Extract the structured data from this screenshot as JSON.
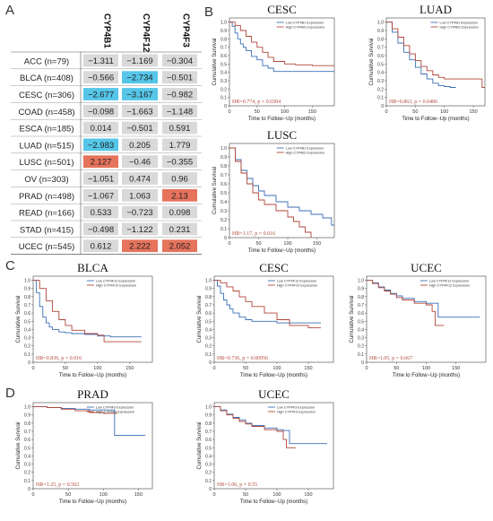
{
  "panel_letters": [
    "A",
    "B",
    "C",
    "D"
  ],
  "colors": {
    "blue_cell": "#55c6e8",
    "red_cell": "#e6735c",
    "gray_cell": "#d9d9d9",
    "low_line": "#3b6fb6",
    "high_line": "#b0473a",
    "hr_text": "#b0473a"
  },
  "chart_data": [
    {
      "type": "table",
      "panel": "A",
      "columns": [
        "CYP4B1",
        "CYP4F12",
        "CYP4F3"
      ],
      "rows": [
        {
          "label": "ACC (n=79)",
          "values": [
            "−1.311",
            "−1.169",
            "−0.304"
          ],
          "colors": [
            "gray",
            "gray",
            "gray"
          ]
        },
        {
          "label": "BLCA (n=408)",
          "values": [
            "−0.566",
            "−2.734",
            "−0.501"
          ],
          "colors": [
            "gray",
            "blue",
            "gray"
          ]
        },
        {
          "label": "CESC (n=306)",
          "values": [
            "−2.677",
            "−3.167",
            "−0.982"
          ],
          "colors": [
            "blue",
            "blue",
            "gray"
          ]
        },
        {
          "label": "COAD (n=458)",
          "values": [
            "−0.098",
            "−1.663",
            "−1.148"
          ],
          "colors": [
            "gray",
            "gray",
            "gray"
          ]
        },
        {
          "label": "ESCA (n=185)",
          "values": [
            "0.014",
            "−0.501",
            "0.591"
          ],
          "colors": [
            "gray",
            "gray",
            "gray"
          ]
        },
        {
          "label": "LUAD (n=515)",
          "values": [
            "−2.983",
            "0.205",
            "1.779"
          ],
          "colors": [
            "blue",
            "gray",
            "gray"
          ]
        },
        {
          "label": "LUSC (n=501)",
          "values": [
            "2.127",
            "−0.46",
            "−0.355"
          ],
          "colors": [
            "red",
            "gray",
            "gray"
          ]
        },
        {
          "label": "OV (n=303)",
          "values": [
            "−1.051",
            "0.474",
            "0.96"
          ],
          "colors": [
            "gray",
            "gray",
            "gray"
          ]
        },
        {
          "label": "PRAD (n=498)",
          "values": [
            "−1.067",
            "1.063",
            "2.13"
          ],
          "colors": [
            "gray",
            "gray",
            "red"
          ]
        },
        {
          "label": "READ (n=166)",
          "values": [
            "0.533",
            "−0.723",
            "0.098"
          ],
          "colors": [
            "gray",
            "gray",
            "gray"
          ]
        },
        {
          "label": "STAD (n=415)",
          "values": [
            "−0.498",
            "−1.122",
            "0.231"
          ],
          "colors": [
            "gray",
            "gray",
            "gray"
          ]
        },
        {
          "label": "UCEC (n=545)",
          "values": [
            "0.612",
            "2.222",
            "2.052"
          ],
          "colors": [
            "gray",
            "red",
            "red"
          ]
        }
      ]
    },
    {
      "type": "line",
      "panel": "B",
      "title": "CESC",
      "xlabel": "Time to Follow−Up (months)",
      "ylabel": "Cumulative Survival",
      "xlim": [
        0,
        190
      ],
      "ylim": [
        0,
        1.05
      ],
      "xticks": [
        0,
        50,
        100,
        150
      ],
      "yticks": [
        0,
        0.1,
        0.2,
        0.3,
        0.4,
        0.5,
        0.6,
        0.7,
        0.8,
        0.9,
        1.0
      ],
      "ytick_labels": [
        "0",
        "0.1",
        "0.2",
        "0.3",
        "0.4",
        "0.5",
        "0.6",
        "0.7",
        "0.8",
        "0.9",
        "1.0"
      ],
      "legend": [
        "Low CYP4B1 Expression",
        "High CYP4B1 Expression"
      ],
      "hr_text": "HR=0.774, p = 0.0304",
      "series": [
        {
          "name": "Low CYP4B1 Expression",
          "color": "#3b6fb6",
          "x": [
            0,
            5,
            10,
            15,
            20,
            25,
            30,
            40,
            50,
            60,
            70,
            80,
            100,
            190
          ],
          "y": [
            1.0,
            0.95,
            0.87,
            0.8,
            0.74,
            0.7,
            0.66,
            0.59,
            0.55,
            0.48,
            0.45,
            0.41,
            0.41,
            0.41
          ]
        },
        {
          "name": "High CYP4B1 Expression",
          "color": "#b0473a",
          "x": [
            0,
            10,
            20,
            30,
            40,
            50,
            60,
            70,
            80,
            100,
            120,
            150,
            190
          ],
          "y": [
            1.0,
            0.96,
            0.9,
            0.83,
            0.76,
            0.7,
            0.64,
            0.58,
            0.53,
            0.5,
            0.49,
            0.48,
            0.48
          ]
        }
      ]
    },
    {
      "type": "line",
      "panel": "B",
      "title": "LUAD",
      "xlabel": "Time to Follow−Up (months)",
      "ylabel": "Cumulative Survival",
      "xlim": [
        0,
        170
      ],
      "ylim": [
        0,
        1.05
      ],
      "xticks": [
        0,
        50,
        100,
        150
      ],
      "yticks": [
        0,
        0.1,
        0.2,
        0.3,
        0.4,
        0.5,
        0.6,
        0.7,
        0.8,
        0.9,
        1.0
      ],
      "ytick_labels": [
        "0",
        "0.1",
        "0.2",
        "0.3",
        "0.4",
        "0.5",
        "0.6",
        "0.7",
        "0.8",
        "0.9",
        "1.0"
      ],
      "legend": [
        "Low CYP4B1 Expression",
        "High CYP4B1 Expression"
      ],
      "hr_text": "HR=0.863, p = 0.0406",
      "series": [
        {
          "name": "Low CYP4B1 Expression",
          "color": "#3b6fb6",
          "x": [
            0,
            10,
            20,
            30,
            40,
            50,
            60,
            70,
            80,
            90,
            100,
            110,
            120
          ],
          "y": [
            1.0,
            0.88,
            0.75,
            0.64,
            0.55,
            0.46,
            0.38,
            0.32,
            0.27,
            0.24,
            0.23,
            0.22,
            0.22
          ]
        },
        {
          "name": "High CYP4B1 Expression",
          "color": "#b0473a",
          "x": [
            0,
            10,
            20,
            30,
            40,
            50,
            60,
            70,
            80,
            90,
            100,
            120,
            150,
            165,
            170
          ],
          "y": [
            1.0,
            0.92,
            0.82,
            0.72,
            0.62,
            0.54,
            0.47,
            0.42,
            0.37,
            0.34,
            0.32,
            0.32,
            0.32,
            0.22,
            0.22
          ]
        }
      ]
    },
    {
      "type": "line",
      "panel": "B",
      "title": "LUSC",
      "xlabel": "Time to Follow−Up (months)",
      "ylabel": "Cumulative Survival",
      "xlim": [
        0,
        180
      ],
      "ylim": [
        0,
        1.05
      ],
      "xticks": [
        0,
        50,
        100,
        150
      ],
      "yticks": [
        0,
        0.1,
        0.2,
        0.3,
        0.4,
        0.5,
        0.6,
        0.7,
        0.8,
        0.9,
        1.0
      ],
      "ytick_labels": [
        "0",
        "0.1",
        "0.2",
        "0.3",
        "0.4",
        "0.5",
        "0.6",
        "0.7",
        "0.8",
        "0.9",
        "1.0"
      ],
      "legend": [
        "Low CYP4B1 Expression",
        "High CYP4B1 Expression"
      ],
      "hr_text": "HR=1.17, p = 0.016",
      "series": [
        {
          "name": "Low CYP4B1 Expression",
          "color": "#3b6fb6",
          "x": [
            0,
            10,
            20,
            30,
            40,
            50,
            60,
            80,
            100,
            120,
            140,
            160,
            175,
            180
          ],
          "y": [
            1.0,
            0.87,
            0.75,
            0.66,
            0.58,
            0.52,
            0.47,
            0.4,
            0.34,
            0.3,
            0.26,
            0.22,
            0.14,
            0.14
          ]
        },
        {
          "name": "High CYP4B1 Expression",
          "color": "#b0473a",
          "x": [
            0,
            10,
            20,
            30,
            40,
            50,
            60,
            80,
            100,
            110,
            120,
            130,
            140
          ],
          "y": [
            1.0,
            0.85,
            0.72,
            0.6,
            0.5,
            0.42,
            0.37,
            0.3,
            0.23,
            0.18,
            0.12,
            0.06,
            0.0
          ]
        }
      ]
    },
    {
      "type": "line",
      "panel": "C",
      "title": "BLCA",
      "xlabel": "Time to Follow−Up (months)",
      "ylabel": "Cumulative Survival",
      "xlim": [
        0,
        185
      ],
      "ylim": [
        0,
        1.05
      ],
      "xticks": [
        0,
        50,
        100,
        150
      ],
      "yticks": [
        0,
        0.1,
        0.2,
        0.3,
        0.4,
        0.5,
        0.6,
        0.7,
        0.8,
        0.9,
        1.0
      ],
      "ytick_labels": [
        "0",
        "0.1",
        "0.2",
        "0.3",
        "0.4",
        "0.5",
        "0.6",
        "0.7",
        "0.8",
        "0.9",
        "1.0"
      ],
      "legend": [
        "Low CYP4F12 Expression",
        "High CYP4F12 Expression"
      ],
      "hr_text": "HR=0.836, p = 0.016",
      "series": [
        {
          "name": "Low CYP4F12 Expression",
          "color": "#3b6fb6",
          "x": [
            0,
            5,
            10,
            15,
            20,
            25,
            30,
            40,
            50,
            60,
            80,
            100,
            120,
            168
          ],
          "y": [
            1.0,
            0.85,
            0.68,
            0.55,
            0.48,
            0.43,
            0.4,
            0.37,
            0.36,
            0.35,
            0.34,
            0.32,
            0.31,
            0.31
          ]
        },
        {
          "name": "High CYP4F12 Expression",
          "color": "#b0473a",
          "x": [
            0,
            10,
            20,
            30,
            40,
            50,
            60,
            80,
            100,
            110,
            120,
            168
          ],
          "y": [
            1.0,
            0.9,
            0.75,
            0.62,
            0.52,
            0.45,
            0.39,
            0.35,
            0.33,
            0.25,
            0.25,
            0.25
          ]
        }
      ]
    },
    {
      "type": "line",
      "panel": "C",
      "title": "CESC",
      "xlabel": "Time to Follow−Up (months)",
      "ylabel": "Cumulative Survival",
      "xlim": [
        0,
        190
      ],
      "ylim": [
        0,
        1.05
      ],
      "xticks": [
        0,
        50,
        100,
        150
      ],
      "yticks": [
        0,
        0.1,
        0.2,
        0.3,
        0.4,
        0.5,
        0.6,
        0.7,
        0.8,
        0.9,
        1.0
      ],
      "ytick_labels": [
        "0",
        "0.1",
        "0.2",
        "0.3",
        "0.4",
        "0.5",
        "0.6",
        "0.7",
        "0.8",
        "0.9",
        "1.0"
      ],
      "legend": [
        "Low CYP4F12 Expression",
        "High CYP4F12 Expression"
      ],
      "hr_text": "HR=0.736, p = 0.00956",
      "series": [
        {
          "name": "Low CYP4F12 Expression",
          "color": "#3b6fb6",
          "x": [
            0,
            5,
            10,
            15,
            20,
            25,
            30,
            40,
            50,
            60,
            80,
            100,
            120,
            150,
            170
          ],
          "y": [
            1.0,
            0.93,
            0.84,
            0.76,
            0.7,
            0.65,
            0.6,
            0.55,
            0.52,
            0.5,
            0.5,
            0.48,
            0.48,
            0.48,
            0.48
          ]
        },
        {
          "name": "High CYP4F12 Expression",
          "color": "#b0473a",
          "x": [
            0,
            10,
            20,
            30,
            40,
            50,
            60,
            80,
            100,
            120,
            150,
            170
          ],
          "y": [
            1.0,
            0.97,
            0.92,
            0.87,
            0.8,
            0.74,
            0.68,
            0.6,
            0.52,
            0.45,
            0.42,
            0.42
          ]
        }
      ]
    },
    {
      "type": "line",
      "panel": "C",
      "title": "UCEC",
      "xlabel": "Time to Follow−Up (months)",
      "ylabel": "Cumulative Survival",
      "xlim": [
        0,
        200
      ],
      "ylim": [
        0,
        1.05
      ],
      "xticks": [
        0,
        50,
        100,
        150
      ],
      "yticks": [
        0,
        0.1,
        0.2,
        0.3,
        0.4,
        0.5,
        0.6,
        0.7,
        0.8,
        0.9,
        1.0
      ],
      "ytick_labels": [
        "0",
        "0.1",
        "0.2",
        "0.3",
        "0.4",
        "0.5",
        "0.6",
        "0.7",
        "0.8",
        "0.9",
        "1.0"
      ],
      "legend": [
        "Low CYP4F12 Expression",
        "High CYP4F12 Expression"
      ],
      "hr_text": "HR=1.05, p = 0.667",
      "series": [
        {
          "name": "Low CYP4F12 Expression",
          "color": "#3b6fb6",
          "x": [
            0,
            10,
            20,
            30,
            40,
            50,
            60,
            80,
            100,
            115,
            120,
            150,
            190
          ],
          "y": [
            1.0,
            0.97,
            0.92,
            0.88,
            0.84,
            0.81,
            0.78,
            0.74,
            0.72,
            0.72,
            0.55,
            0.55,
            0.55
          ]
        },
        {
          "name": "High CYP4F12 Expression",
          "color": "#b0473a",
          "x": [
            0,
            10,
            20,
            30,
            40,
            50,
            60,
            80,
            100,
            110,
            115,
            130
          ],
          "y": [
            1.0,
            0.96,
            0.91,
            0.87,
            0.83,
            0.79,
            0.76,
            0.72,
            0.7,
            0.62,
            0.45,
            0.45
          ]
        }
      ]
    },
    {
      "type": "line",
      "panel": "D",
      "title": "PRAD",
      "xlabel": "Time to Follow−Up (months)",
      "ylabel": "Cumulative Survival",
      "xlim": [
        0,
        170
      ],
      "ylim": [
        0,
        1.05
      ],
      "xticks": [
        0,
        50,
        100,
        150
      ],
      "yticks": [
        0,
        0.1,
        0.2,
        0.3,
        0.4,
        0.5,
        0.6,
        0.7,
        0.8,
        0.9,
        1.0
      ],
      "ytick_labels": [
        "0",
        "0.1",
        "0.2",
        "0.3",
        "0.4",
        "0.5",
        "0.6",
        "0.7",
        "0.8",
        "0.9",
        "1.0"
      ],
      "legend": [
        "Low CYP4F3 Expression",
        "High CYP4F3 Expression"
      ],
      "hr_text": "HR=1.25, p = 0.502",
      "series": [
        {
          "name": "Low CYP4F3 Expression",
          "color": "#3b6fb6",
          "x": [
            0,
            20,
            40,
            60,
            80,
            100,
            115,
            116,
            160
          ],
          "y": [
            1.0,
            0.99,
            0.98,
            0.97,
            0.96,
            0.96,
            0.96,
            0.65,
            0.65
          ]
        },
        {
          "name": "High CYP4F3 Expression",
          "color": "#b0473a",
          "x": [
            0,
            20,
            40,
            60,
            80,
            100,
            120
          ],
          "y": [
            1.0,
            0.99,
            0.97,
            0.95,
            0.93,
            0.92,
            0.92
          ]
        }
      ]
    },
    {
      "type": "line",
      "panel": "D",
      "title": "UCEC",
      "xlabel": "Time to Follow−Up (months)",
      "ylabel": "Cumulative Survival",
      "xlim": [
        0,
        190
      ],
      "ylim": [
        0,
        1.05
      ],
      "xticks": [
        0,
        50,
        100,
        150
      ],
      "yticks": [
        0,
        0.1,
        0.2,
        0.3,
        0.4,
        0.5,
        0.6,
        0.7,
        0.8,
        0.9,
        1.0
      ],
      "ytick_labels": [
        "0",
        "0.1",
        "0.2",
        "0.3",
        "0.4",
        "0.5",
        "0.6",
        "0.7",
        "0.8",
        "0.9",
        "1.0"
      ],
      "legend": [
        "Low CYP4F3 Expression",
        "High CYP4F3 Expression"
      ],
      "hr_text": "HR=1.06, p = 0.55",
      "series": [
        {
          "name": "Low CYP4F3 Expression",
          "color": "#3b6fb6",
          "x": [
            0,
            10,
            20,
            30,
            40,
            50,
            60,
            80,
            100,
            110,
            120,
            150,
            180
          ],
          "y": [
            1.0,
            0.96,
            0.91,
            0.87,
            0.84,
            0.8,
            0.77,
            0.74,
            0.72,
            0.71,
            0.55,
            0.55,
            0.55
          ]
        },
        {
          "name": "High CYP4F3 Expression",
          "color": "#b0473a",
          "x": [
            0,
            10,
            20,
            30,
            40,
            50,
            60,
            80,
            100,
            110,
            115,
            130
          ],
          "y": [
            1.0,
            0.95,
            0.9,
            0.86,
            0.82,
            0.79,
            0.76,
            0.72,
            0.7,
            0.6,
            0.5,
            0.5
          ]
        }
      ]
    }
  ]
}
